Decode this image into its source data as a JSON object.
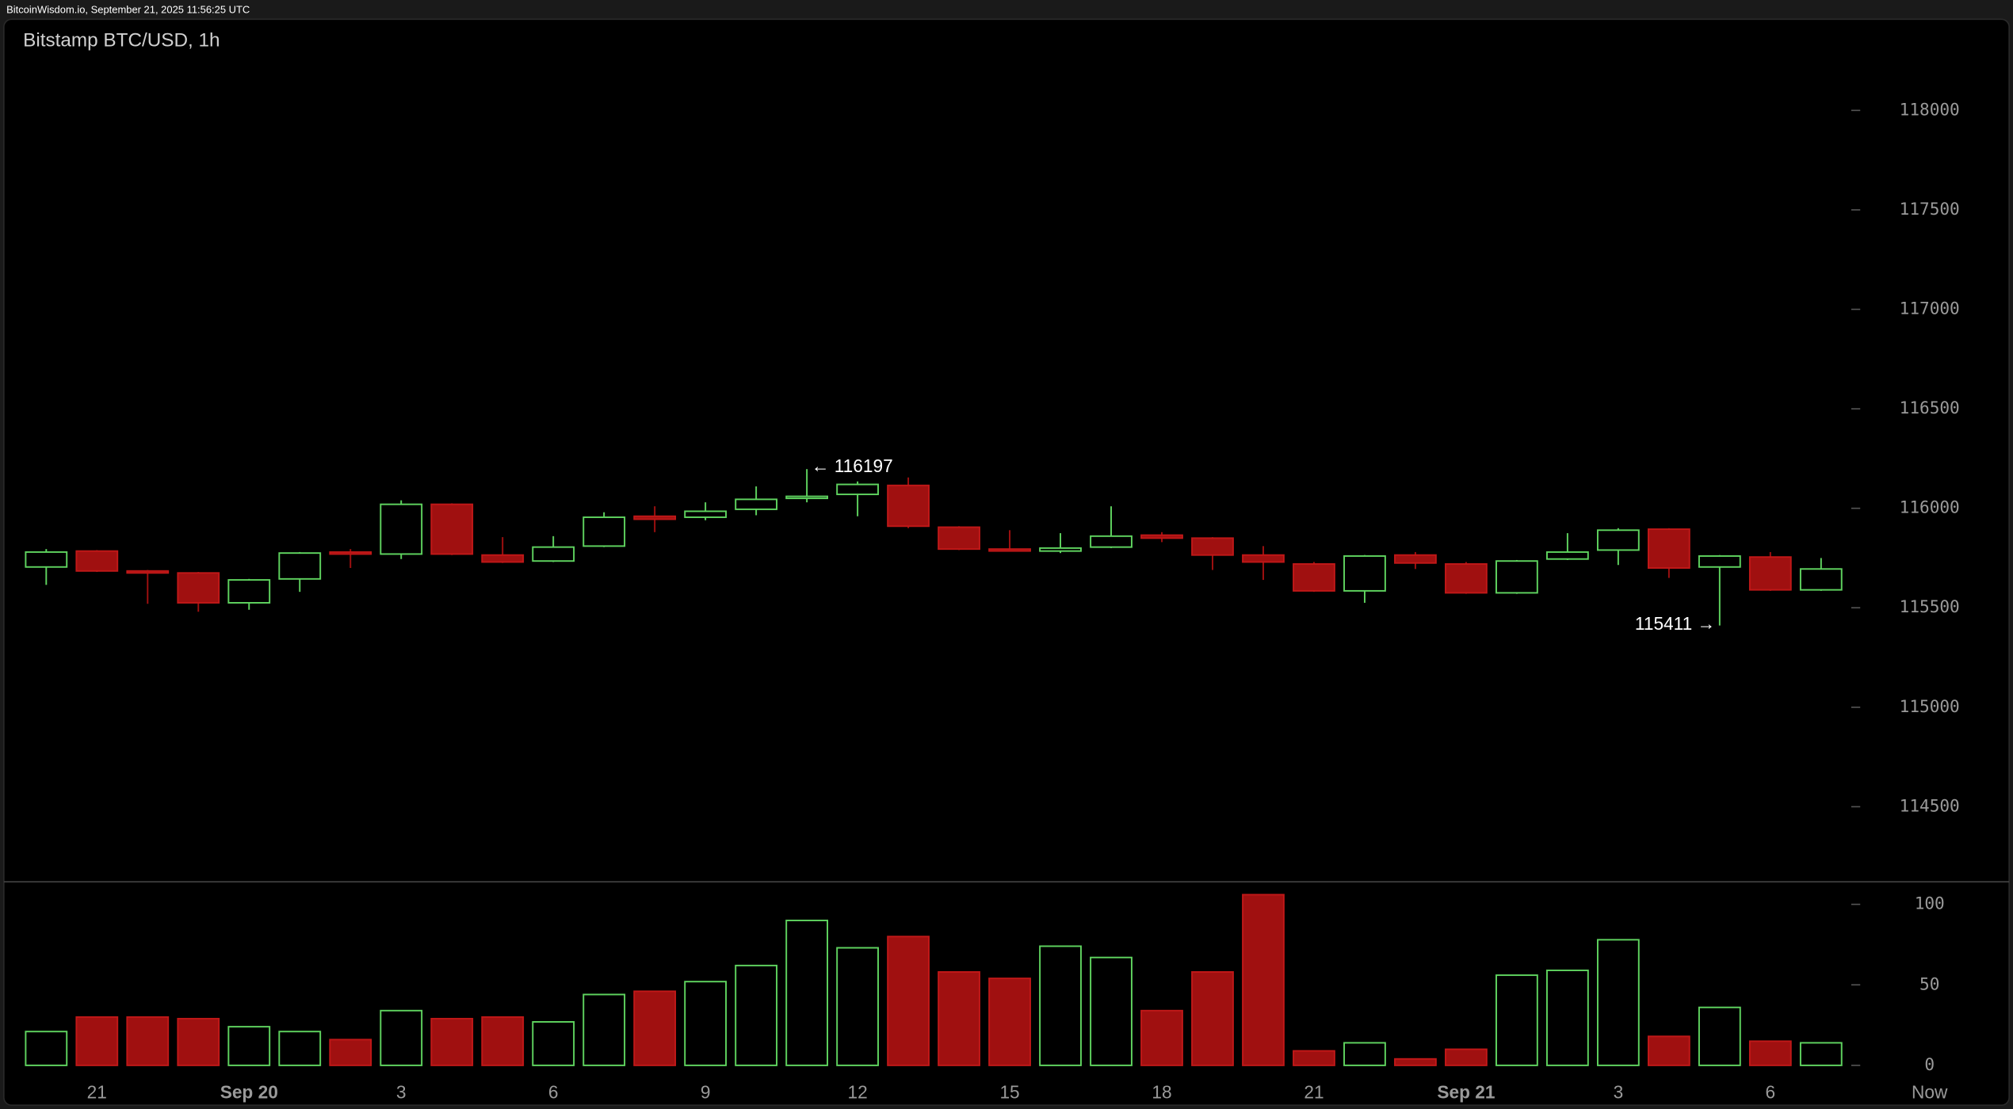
{
  "header": {
    "source": "BitcoinWisdom.io, September 21, 2025 11:56:25 UTC"
  },
  "chart_data": [
    {
      "type": "candlestick",
      "title": "Bitstamp BTC/USD, 1h",
      "categories": [
        null,
        "21",
        null,
        null,
        "Sep 20",
        null,
        null,
        "3",
        null,
        null,
        "6",
        null,
        null,
        "9",
        null,
        null,
        "12",
        null,
        null,
        "15",
        null,
        null,
        "18",
        null,
        null,
        "21",
        null,
        null,
        "Sep 21",
        null,
        null,
        "3",
        null,
        null,
        "6",
        null
      ],
      "now_label": "Now",
      "open": [
        115705,
        115785,
        115685,
        115675,
        115525,
        115645,
        115780,
        115770,
        116020,
        115765,
        115735,
        115810,
        115960,
        115955,
        115995,
        116050,
        116070,
        116115,
        115905,
        115795,
        115785,
        115805,
        115865,
        115850,
        115765,
        115720,
        115585,
        115765,
        115720,
        115575,
        115745,
        115790,
        115895,
        115705,
        115755,
        115590
      ],
      "high": [
        115795,
        115790,
        115690,
        115680,
        115645,
        115780,
        115795,
        116040,
        116025,
        115855,
        115860,
        115980,
        116010,
        116030,
        116110,
        116197,
        116135,
        116155,
        115910,
        115890,
        115875,
        116010,
        115880,
        115855,
        115810,
        115730,
        115765,
        115780,
        115730,
        115740,
        115875,
        115900,
        115900,
        115765,
        115780,
        115750
      ],
      "low": [
        115615,
        115680,
        115520,
        115480,
        115490,
        115580,
        115700,
        115745,
        115765,
        115725,
        115730,
        115805,
        115880,
        115940,
        115965,
        116030,
        115960,
        115900,
        115790,
        115785,
        115775,
        115800,
        115830,
        115690,
        115640,
        115580,
        115525,
        115695,
        115570,
        115570,
        115740,
        115715,
        115650,
        115411,
        115585,
        115585
      ],
      "close": [
        115780,
        115685,
        115675,
        115525,
        115640,
        115775,
        115770,
        116020,
        115770,
        115730,
        115805,
        115955,
        115945,
        115985,
        116045,
        116060,
        116120,
        115910,
        115795,
        115790,
        115800,
        115860,
        115850,
        115765,
        115730,
        115585,
        115760,
        115725,
        115575,
        115735,
        115780,
        115890,
        115700,
        115760,
        115590,
        115695
      ],
      "up_color": "#5fd35f",
      "down_color": "#a01010",
      "ylim": [
        114200,
        118400
      ],
      "yticks": [
        114500,
        115000,
        115500,
        116000,
        116500,
        117000,
        117500,
        118000
      ],
      "annotations": [
        "← 116197",
        "115411 →"
      ]
    },
    {
      "type": "bar",
      "values": [
        21,
        30,
        30,
        29,
        24,
        21,
        16,
        34,
        29,
        30,
        27,
        44,
        46,
        52,
        62,
        90,
        73,
        80,
        58,
        54,
        74,
        67,
        34,
        58,
        106,
        9,
        14,
        4,
        10,
        56,
        59,
        78,
        18,
        36,
        15,
        14
      ],
      "ylim": [
        0,
        110
      ],
      "yticks": [
        0,
        50,
        100
      ]
    }
  ]
}
